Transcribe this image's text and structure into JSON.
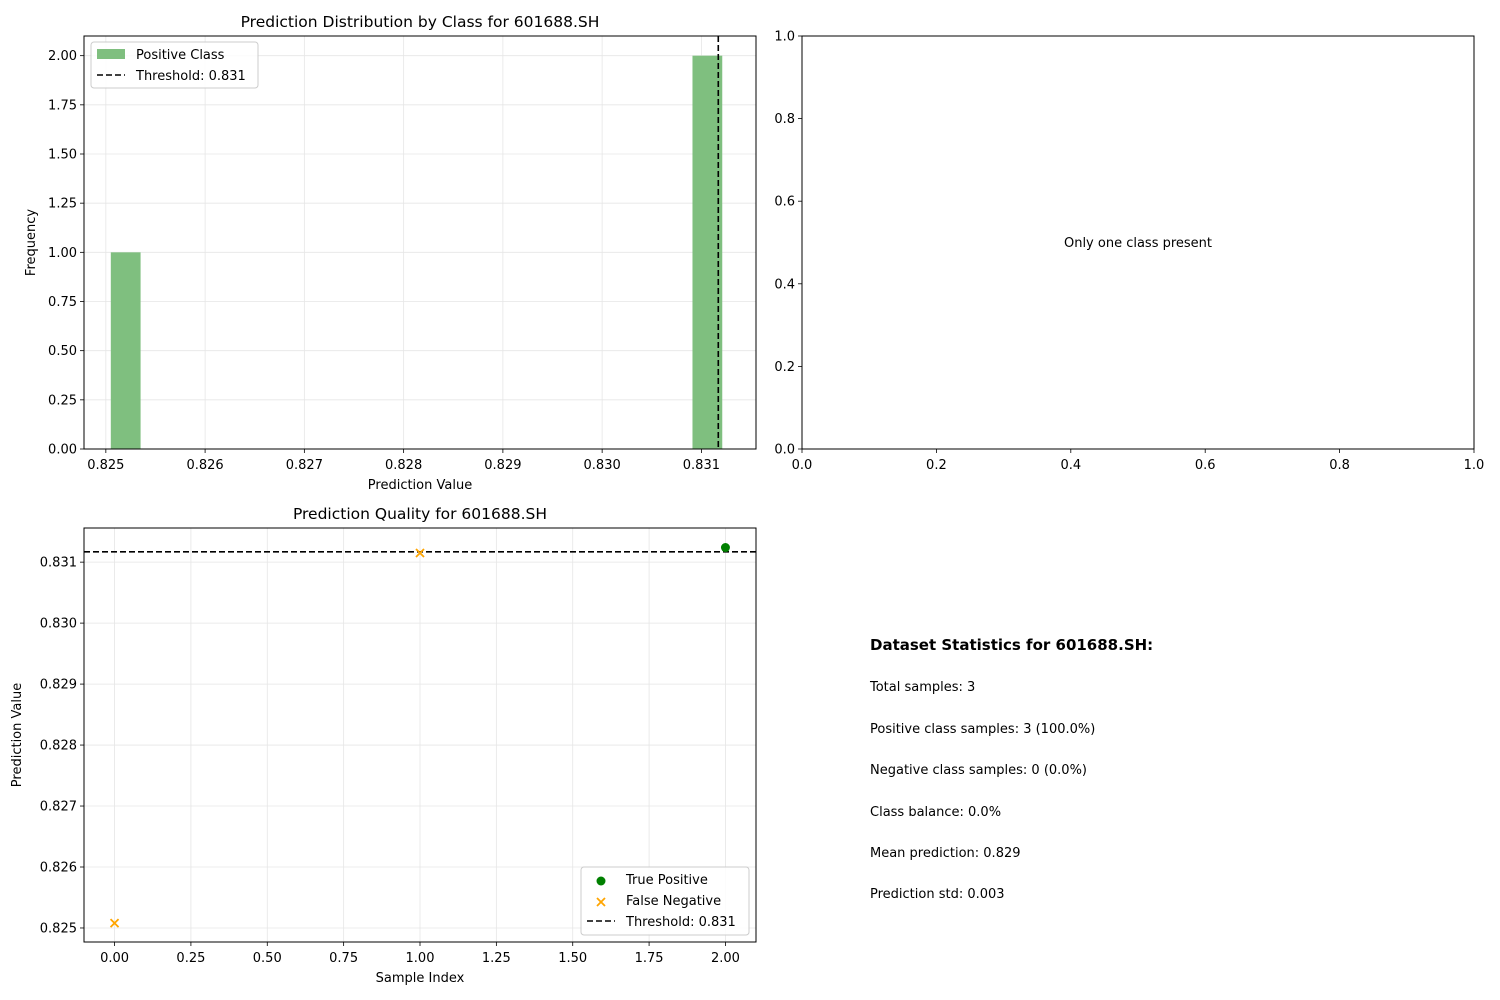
{
  "chart_data": [
    {
      "type": "bar",
      "title": "Prediction Distribution by Class for 601688.SH",
      "xlabel": "Prediction Value",
      "ylabel": "Frequency",
      "xlim": [
        0.82478,
        0.83155
      ],
      "ylim": [
        0,
        2.1
      ],
      "xticks": [
        "0.825",
        "0.826",
        "0.827",
        "0.828",
        "0.829",
        "0.830",
        "0.831"
      ],
      "xtick_values": [
        0.825,
        0.826,
        0.827,
        0.828,
        0.829,
        0.83,
        0.831
      ],
      "yticks": [
        "0.00",
        "0.25",
        "0.50",
        "0.75",
        "1.00",
        "1.25",
        "1.50",
        "1.75",
        "2.00"
      ],
      "ytick_values": [
        0,
        0.25,
        0.5,
        0.75,
        1.0,
        1.25,
        1.5,
        1.75,
        2.0
      ],
      "grid": true,
      "legend_position": "top-left",
      "series": [
        {
          "name": "Positive Class",
          "color": "#7fbf7f",
          "bins": [
            {
              "x0": 0.82505,
              "x1": 0.82535,
              "count": 1
            },
            {
              "x0": 0.83091,
              "x1": 0.83121,
              "count": 2
            }
          ]
        }
      ],
      "threshold": {
        "label": "Threshold: 0.831",
        "value": 0.83117
      }
    },
    {
      "type": "scatter",
      "title": "",
      "xlabel": "",
      "ylabel": "",
      "xlim": [
        0,
        1
      ],
      "ylim": [
        0,
        1
      ],
      "xticks": [
        "0.0",
        "0.2",
        "0.4",
        "0.6",
        "0.8",
        "1.0"
      ],
      "xtick_values": [
        0,
        0.2,
        0.4,
        0.6,
        0.8,
        1.0
      ],
      "yticks": [
        "0.0",
        "0.2",
        "0.4",
        "0.6",
        "0.8",
        "1.0"
      ],
      "ytick_values": [
        0,
        0.2,
        0.4,
        0.6,
        0.8,
        1.0
      ],
      "grid": false,
      "annotation": "Only one class present"
    },
    {
      "type": "scatter",
      "title": "Prediction Quality for 601688.SH",
      "xlabel": "Sample Index",
      "ylabel": "Prediction Value",
      "xlim": [
        -0.1,
        2.1
      ],
      "ylim": [
        0.82477,
        0.83156
      ],
      "xticks": [
        "0.00",
        "0.25",
        "0.50",
        "0.75",
        "1.00",
        "1.25",
        "1.50",
        "1.75",
        "2.00"
      ],
      "xtick_values": [
        0,
        0.25,
        0.5,
        0.75,
        1.0,
        1.25,
        1.5,
        1.75,
        2.0
      ],
      "yticks": [
        "0.825",
        "0.826",
        "0.827",
        "0.828",
        "0.829",
        "0.830",
        "0.831"
      ],
      "ytick_values": [
        0.825,
        0.826,
        0.827,
        0.828,
        0.829,
        0.83,
        0.831
      ],
      "grid": true,
      "legend_position": "bottom-right",
      "series": [
        {
          "name": "True Positive",
          "marker": "circle",
          "color": "#008000",
          "points": [
            {
              "x": 2.0,
              "y": 0.83124
            }
          ]
        },
        {
          "name": "False Negative",
          "marker": "x",
          "color": "#ffa500",
          "points": [
            {
              "x": 0.0,
              "y": 0.82508
            },
            {
              "x": 1.0,
              "y": 0.83115
            }
          ]
        }
      ],
      "threshold": {
        "label": "Threshold: 0.831",
        "value": 0.83117
      }
    }
  ],
  "stats": {
    "title": "Dataset Statistics for 601688.SH:",
    "lines": [
      "Total samples: 3",
      "Positive class samples: 3 (100.0%)",
      "Negative class samples: 0 (0.0%)",
      "Class balance: 0.0%",
      "Mean prediction: 0.829",
      "Prediction std: 0.003"
    ]
  }
}
